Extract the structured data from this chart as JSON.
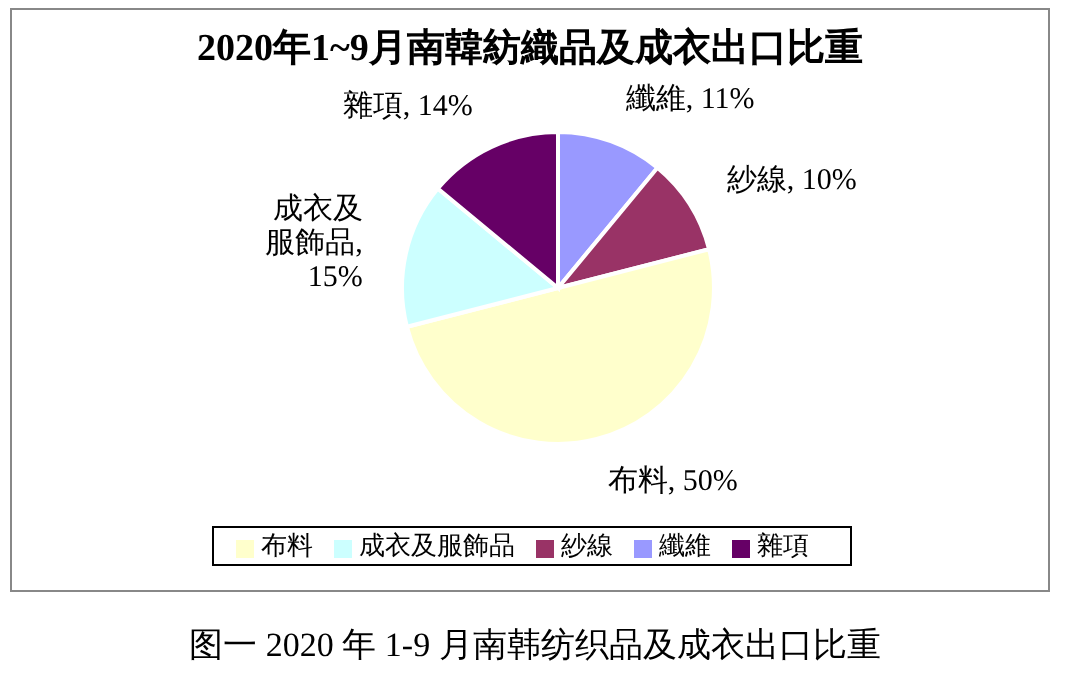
{
  "chart_data": {
    "type": "pie",
    "title": "2020年1~9月南韓紡織品及成衣出口比重",
    "categories": [
      "纖維",
      "紗線",
      "布料",
      "成衣及服飾品",
      "雜項"
    ],
    "values": [
      11,
      10,
      50,
      15,
      14
    ],
    "colors": [
      "#9999ff",
      "#993366",
      "#ffffcc",
      "#ccffff",
      "#660066"
    ],
    "value_labels": [
      "纖維, 11%",
      "紗線, 10%",
      "布料, 50%",
      "成衣及服飾品, 15%",
      "雜項, 14%"
    ],
    "legend": "bottom",
    "annotations": [
      "图一 2020 年 1-9 月南韩纺织品及成衣出口比重"
    ]
  }
}
